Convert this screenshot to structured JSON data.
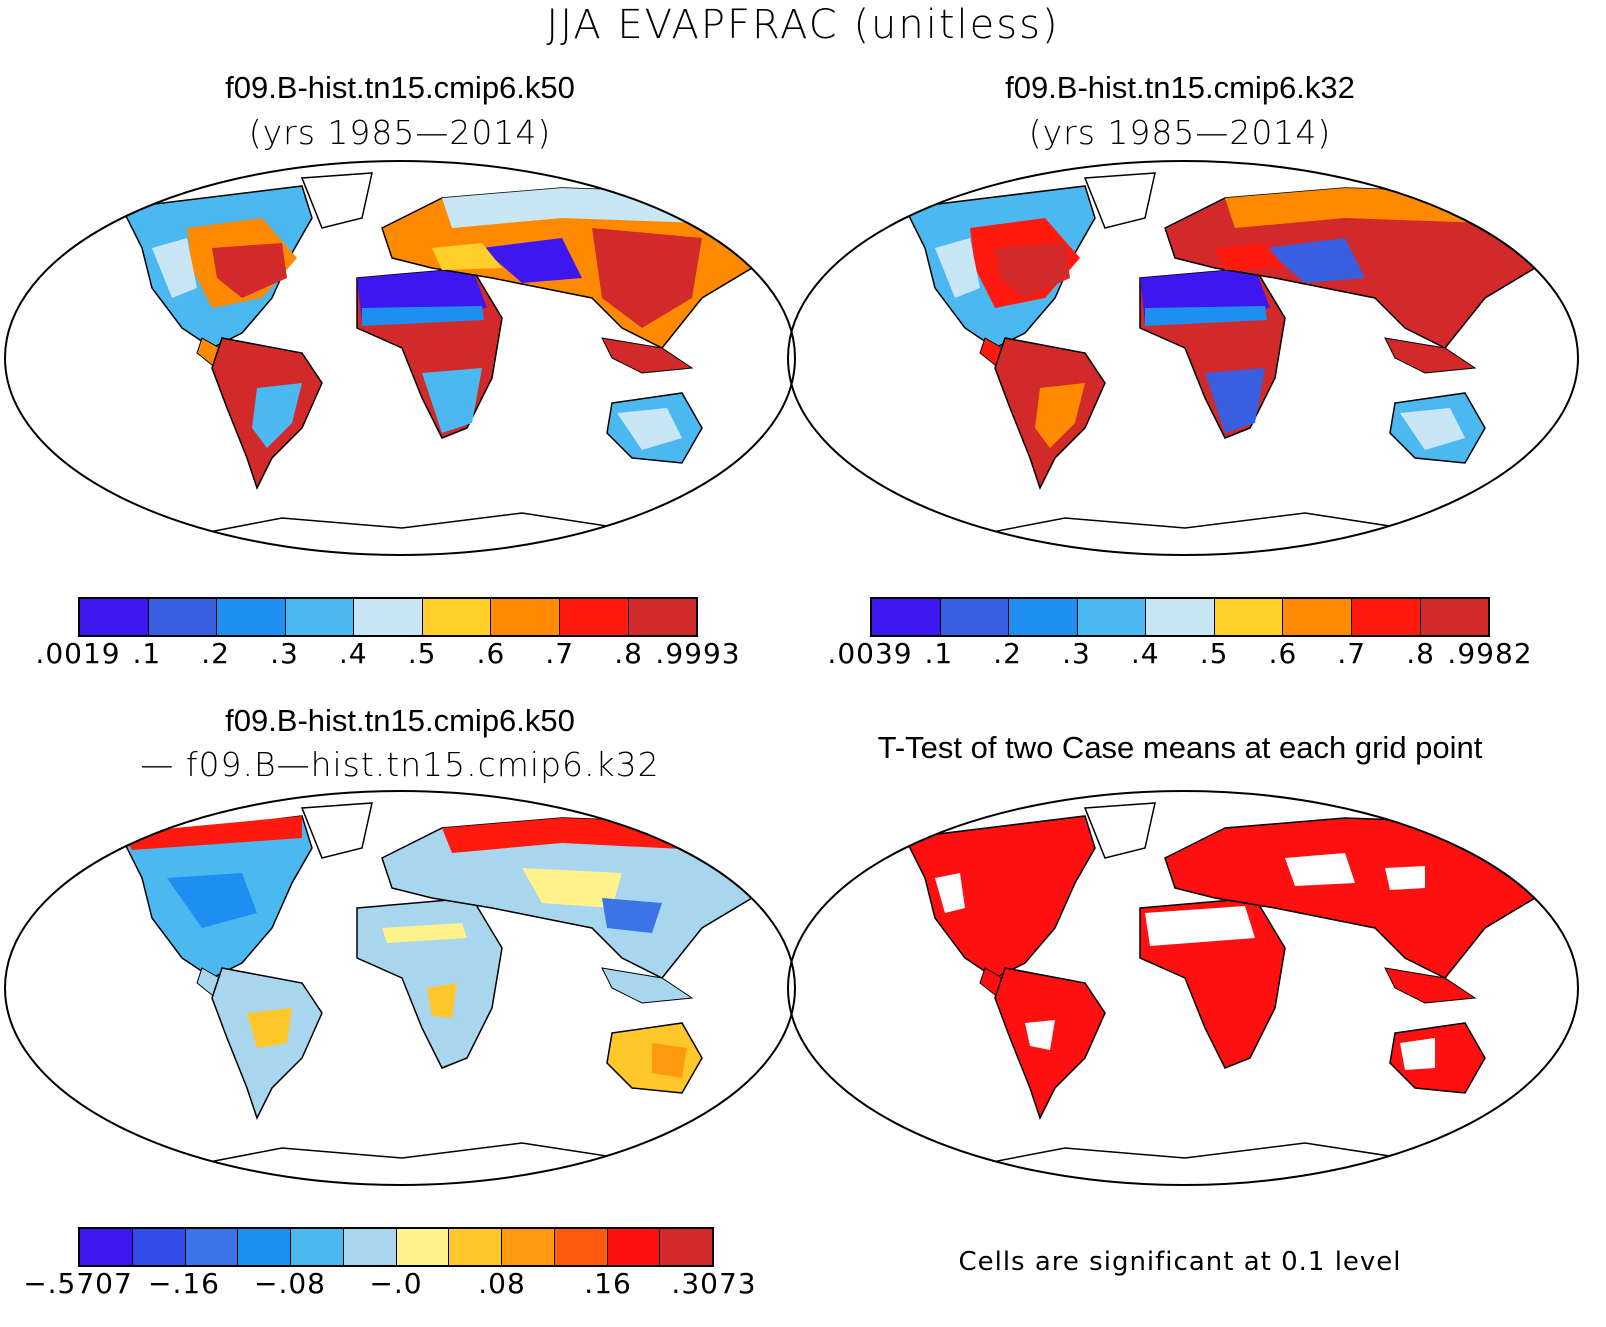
{
  "title": "JJA EVAPFRAC (unitless)",
  "panels": {
    "top_left": {
      "case": "f09.B-hist.tn15.cmip6.k50",
      "years": "(yrs 1985—2014)",
      "colorbar": {
        "colors": [
          "#3d16f0",
          "#3a5ee0",
          "#1e8ef0",
          "#4cb8f0",
          "#c8e6f5",
          "#ffcf2a",
          "#ff8a00",
          "#ff1a10",
          "#d22a2a"
        ],
        "labels": [
          ".0019",
          ".1",
          ".2",
          ".3",
          ".4",
          ".5",
          ".6",
          ".7",
          ".8",
          ".9993"
        ]
      }
    },
    "top_right": {
      "case": "f09.B-hist.tn15.cmip6.k32",
      "years": "(yrs 1985—2014)",
      "colorbar": {
        "colors": [
          "#3d16f0",
          "#3a5ee0",
          "#1e8ef0",
          "#4cb8f0",
          "#c8e6f5",
          "#ffcf2a",
          "#ff8a00",
          "#ff1a10",
          "#d22a2a"
        ],
        "labels": [
          ".0039",
          ".1",
          ".2",
          ".3",
          ".4",
          ".5",
          ".6",
          ".7",
          ".8",
          ".9982"
        ]
      }
    },
    "bottom_left": {
      "case": "f09.B-hist.tn15.cmip6.k50",
      "minus_case": "— f09.B—hist.tn15.cmip6.k32",
      "colorbar": {
        "colors": [
          "#3d16f0",
          "#2f4ce6",
          "#3a74e6",
          "#1e8ef0",
          "#4cb8f0",
          "#a8d6ee",
          "#fff28a",
          "#ffc72a",
          "#ff9a10",
          "#ff5a10",
          "#ff1010",
          "#d22a2a"
        ],
        "labels": [
          "−.5707",
          "−.16",
          "−.08",
          "−.0",
          ".08",
          ".16",
          ".3073"
        ]
      }
    },
    "bottom_right": {
      "title": "T-Test of two Case means at each grid point",
      "note": "Cells are significant at 0.1 level"
    }
  }
}
